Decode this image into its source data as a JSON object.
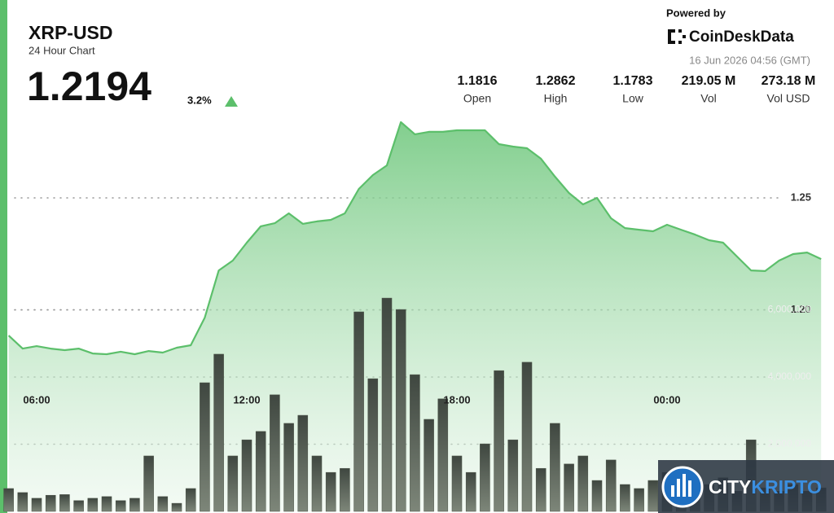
{
  "header": {
    "title": "XRP-USD",
    "subtitle": "24 Hour Chart",
    "price": "1.2194",
    "change": "3.2%",
    "powered_by": "Powered by",
    "brand": "CoinDeskData",
    "timestamp": "16 Jun 2026 04:56 (GMT)"
  },
  "stats": [
    {
      "value": "1.1816",
      "label": "Open"
    },
    {
      "value": "1.2862",
      "label": "High"
    },
    {
      "value": "1.1783",
      "label": "Low"
    },
    {
      "value": "219.05 M",
      "label": "Vol"
    },
    {
      "value": "273.18 M",
      "label": "Vol USD"
    }
  ],
  "watermark": [
    "CITY",
    "KRIPTO"
  ],
  "chart_data": {
    "type": "line",
    "fill": "area",
    "grid": true,
    "categories": [
      null,
      null,
      "06:00",
      null,
      null,
      null,
      null,
      null,
      null,
      null,
      null,
      null,
      null,
      null,
      null,
      null,
      null,
      "12:00",
      null,
      null,
      null,
      null,
      null,
      null,
      null,
      null,
      null,
      null,
      null,
      null,
      null,
      null,
      "18:00",
      null,
      null,
      null,
      null,
      null,
      null,
      null,
      null,
      null,
      null,
      null,
      null,
      null,
      null,
      "00:00",
      null,
      null,
      null,
      null,
      null,
      null,
      null,
      null,
      null,
      null,
      null
    ],
    "series": [
      {
        "color": "#5cbf6b",
        "values": [
          1.1885,
          1.1827,
          1.1838,
          1.1827,
          1.182,
          1.1827,
          1.1805,
          1.1802,
          1.1813,
          1.1802,
          1.1816,
          1.1809,
          1.1831,
          1.1842,
          1.1965,
          1.2176,
          1.222,
          1.23,
          1.2373,
          1.2387,
          1.2431,
          1.2384,
          1.2395,
          1.2402,
          1.2431,
          1.254,
          1.2602,
          1.2645,
          1.2838,
          1.2784,
          1.2795,
          1.2795,
          1.2802,
          1.2802,
          1.2802,
          1.274,
          1.2729,
          1.2722,
          1.2675,
          1.2595,
          1.2522,
          1.2471,
          1.25,
          1.2409,
          1.2365,
          1.2358,
          1.2351,
          1.238,
          1.2358,
          1.2336,
          1.2311,
          1.23,
          1.2238,
          1.2176,
          1.2173,
          1.222,
          1.2249,
          1.2256,
          1.2227
        ]
      },
      {
        "type": "bar",
        "axis": "y2",
        "color": "#4b5347",
        "values": [
          680000,
          560000,
          390000,
          480000,
          500000,
          320000,
          390000,
          440000,
          320000,
          390000,
          1650000,
          440000,
          240000,
          680000,
          3830000,
          4680000,
          1650000,
          2130000,
          2380000,
          3470000,
          2620000,
          2860000,
          1650000,
          1160000,
          1280000,
          5940000,
          3950000,
          6350000,
          6010000,
          4070000,
          2740000,
          3350000,
          1650000,
          1160000,
          2010000,
          4190000,
          2130000,
          4440000,
          1280000,
          2620000,
          1410000,
          1650000,
          920000,
          1530000,
          800000,
          680000,
          920000,
          1160000,
          900000,
          700000,
          800000,
          1000000,
          600000,
          2130000,
          700000,
          600000,
          800000,
          600000,
          700000
        ]
      }
    ],
    "ylim": [
      1.11,
      1.29
    ],
    "yticks": [
      {
        "value": 1.2,
        "label": "1.20"
      },
      1.25
    ],
    "y2lim": [
      0,
      12000000
    ],
    "y2ticks": [
      {
        "value": 2000000,
        "label": "2,000,000"
      },
      {
        "value": 4000000,
        "label": "4,000,000"
      },
      {
        "value": 6000000,
        "label": "6,000,000"
      }
    ]
  }
}
